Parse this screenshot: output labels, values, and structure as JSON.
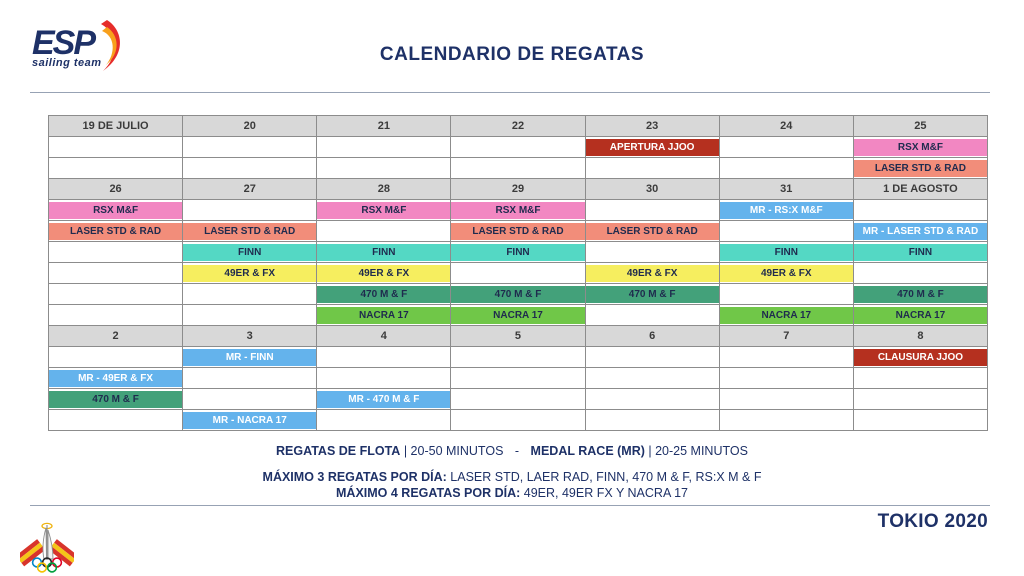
{
  "logo": {
    "text": "ESP",
    "subtext": "sailing team"
  },
  "title": "CALENDARIO DE REGATAS",
  "footer_brand": "TOKIO 2020",
  "colors": {
    "navy": "#1E3167",
    "cellText": "#1F2B4E",
    "headerBg": "#D8D8D8",
    "border": "#8C8C8C",
    "line": "#97A2B4",
    "pink": "#F287C2",
    "salmon": "#F28D7A",
    "teal": "#54D8C4",
    "yellow": "#F6EE5F",
    "dkteal": "#43A17A",
    "green": "#70C748",
    "blue": "#64B3EC",
    "red": "#B5301F"
  },
  "calendar": {
    "rows": [
      {
        "type": "header",
        "cells": [
          "19 DE JULIO",
          "20",
          "21",
          "22",
          "23",
          "24",
          "25"
        ]
      },
      {
        "type": "events",
        "cells": [
          null,
          null,
          null,
          null,
          {
            "text": "APERTURA JJOO",
            "color": "red"
          },
          null,
          {
            "text": "RSX M&F",
            "color": "pink"
          }
        ]
      },
      {
        "type": "events",
        "cells": [
          null,
          null,
          null,
          null,
          null,
          null,
          {
            "text": "LASER STD & RAD",
            "color": "salmon"
          }
        ]
      },
      {
        "type": "header",
        "cells": [
          "26",
          "27",
          "28",
          "29",
          "30",
          "31",
          "1 DE AGOSTO"
        ]
      },
      {
        "type": "events",
        "cells": [
          {
            "text": "RSX M&F",
            "color": "pink"
          },
          null,
          {
            "text": "RSX M&F",
            "color": "pink"
          },
          {
            "text": "RSX M&F",
            "color": "pink"
          },
          null,
          {
            "text": "MR - RS:X M&F",
            "color": "blue"
          },
          null
        ]
      },
      {
        "type": "events",
        "cells": [
          {
            "text": "LASER STD & RAD",
            "color": "salmon"
          },
          {
            "text": "LASER STD & RAD",
            "color": "salmon"
          },
          null,
          {
            "text": "LASER STD & RAD",
            "color": "salmon"
          },
          {
            "text": "LASER STD & RAD",
            "color": "salmon"
          },
          null,
          {
            "text": "MR - LASER STD & RAD",
            "color": "blue"
          }
        ]
      },
      {
        "type": "events",
        "cells": [
          null,
          {
            "text": "FINN",
            "color": "teal"
          },
          {
            "text": "FINN",
            "color": "teal"
          },
          {
            "text": "FINN",
            "color": "teal"
          },
          null,
          {
            "text": "FINN",
            "color": "teal"
          },
          {
            "text": "FINN",
            "color": "teal"
          }
        ]
      },
      {
        "type": "events",
        "cells": [
          null,
          {
            "text": "49ER & FX",
            "color": "yellow"
          },
          {
            "text": "49ER & FX",
            "color": "yellow"
          },
          null,
          {
            "text": "49ER & FX",
            "color": "yellow"
          },
          {
            "text": "49ER & FX",
            "color": "yellow"
          },
          null
        ]
      },
      {
        "type": "events",
        "cells": [
          null,
          null,
          {
            "text": "470 M & F",
            "color": "dkteal"
          },
          {
            "text": "470 M & F",
            "color": "dkteal"
          },
          {
            "text": "470 M & F",
            "color": "dkteal"
          },
          null,
          {
            "text": "470 M & F",
            "color": "dkteal"
          }
        ]
      },
      {
        "type": "events",
        "cells": [
          null,
          null,
          {
            "text": "NACRA 17",
            "color": "green"
          },
          {
            "text": "NACRA 17",
            "color": "green"
          },
          null,
          {
            "text": "NACRA 17",
            "color": "green"
          },
          {
            "text": "NACRA 17",
            "color": "green"
          }
        ]
      },
      {
        "type": "header",
        "cells": [
          "2",
          "3",
          "4",
          "5",
          "6",
          "7",
          "8"
        ]
      },
      {
        "type": "events",
        "cells": [
          null,
          {
            "text": "MR - FINN",
            "color": "blue"
          },
          null,
          null,
          null,
          null,
          {
            "text": "CLAUSURA JJOO",
            "color": "red"
          }
        ]
      },
      {
        "type": "events",
        "cells": [
          {
            "text": "MR - 49ER & FX",
            "color": "blue"
          },
          null,
          null,
          null,
          null,
          null,
          null
        ]
      },
      {
        "type": "events",
        "cells": [
          {
            "text": "470 M & F",
            "color": "dkteal"
          },
          null,
          {
            "text": "MR - 470 M & F",
            "color": "blue"
          },
          null,
          null,
          null,
          null
        ]
      },
      {
        "type": "events",
        "cells": [
          null,
          {
            "text": "MR - NACRA 17",
            "color": "blue"
          },
          null,
          null,
          null,
          null,
          null
        ]
      }
    ]
  },
  "footer": {
    "legend": {
      "flota_label": "REGATAS DE FLOTA",
      "flota_time": "| 20-50 MINUTOS",
      "separator": "-",
      "mr_label": "MEDAL RACE (MR)",
      "mr_time": "| 20-25 MINUTOS"
    },
    "rules": [
      {
        "label": "MÁXIMO 3 REGATAS POR DÍA:",
        "value": "LASER STD, LAER RAD, FINN, 470 M & F, RS:X M & F"
      },
      {
        "label": "MÁXIMO 4 REGATAS POR DÍA:",
        "value": "49ER, 49ER FX Y NACRA 17"
      }
    ]
  }
}
